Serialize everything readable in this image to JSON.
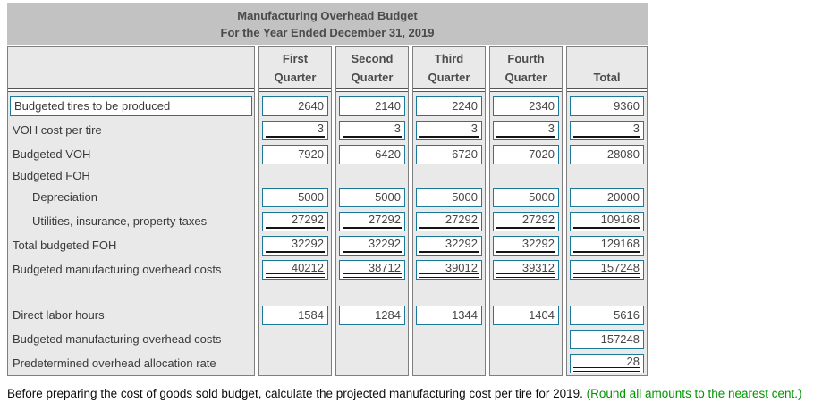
{
  "title": {
    "line1": "Manufacturing Overhead Budget",
    "line2": "For the Year Ended December 31, 2019"
  },
  "columns": [
    {
      "id": "q1",
      "line1": "First",
      "line2": "Quarter"
    },
    {
      "id": "q2",
      "line1": "Second",
      "line2": "Quarter"
    },
    {
      "id": "q3",
      "line1": "Third",
      "line2": "Quarter"
    },
    {
      "id": "q4",
      "line1": "Fourth",
      "line2": "Quarter"
    },
    {
      "id": "total",
      "line1": "",
      "line2": "Total"
    }
  ],
  "rows": [
    {
      "id": "budgeted-tires-to-be-produced",
      "label": "Budgeted tires to be produced",
      "boxed_label": true,
      "underline": "none",
      "cells": {
        "q1": "2640",
        "q2": "2140",
        "q3": "2240",
        "q4": "2340",
        "total": "9360"
      }
    },
    {
      "id": "voh-cost-per-tire",
      "label": "VOH cost per tire",
      "underline": "single",
      "cells": {
        "q1": "3",
        "q2": "3",
        "q3": "3",
        "q4": "3",
        "total": "3"
      }
    },
    {
      "id": "budgeted-voh",
      "label": "Budgeted VOH",
      "underline": "none",
      "cells": {
        "q1": "7920",
        "q2": "6420",
        "q3": "6720",
        "q4": "7020",
        "total": "28080"
      }
    },
    {
      "id": "budgeted-foh",
      "label": "Budgeted FOH"
    },
    {
      "id": "depreciation",
      "label": "Depreciation",
      "indent": true,
      "underline": "none",
      "cells": {
        "q1": "5000",
        "q2": "5000",
        "q3": "5000",
        "q4": "5000",
        "total": "20000"
      }
    },
    {
      "id": "utilities-insurance-property-taxes",
      "label": "Utilities, insurance, property taxes",
      "indent": true,
      "underline": "single",
      "cells": {
        "q1": "27292",
        "q2": "27292",
        "q3": "27292",
        "q4": "27292",
        "total": "109168"
      }
    },
    {
      "id": "total-budgeted-foh",
      "label": "Total budgeted FOH",
      "underline": "single",
      "cells": {
        "q1": "32292",
        "q2": "32292",
        "q3": "32292",
        "q4": "32292",
        "total": "129168"
      }
    },
    {
      "id": "budgeted-manufacturing-overhead-costs",
      "label": "Budgeted manufacturing overhead costs",
      "underline": "double",
      "cells": {
        "q1": "40212",
        "q2": "38712",
        "q3": "39012",
        "q4": "39312",
        "total": "157248"
      }
    },
    {
      "id": "spacer"
    },
    {
      "id": "direct-labor-hours",
      "label": "Direct labor hours",
      "underline": "none",
      "cells": {
        "q1": "1584",
        "q2": "1284",
        "q3": "1344",
        "q4": "1404",
        "total": "5616"
      }
    },
    {
      "id": "budgeted-manufacturing-overhead-costs-total",
      "label": "Budgeted manufacturing overhead costs",
      "underline": "none",
      "cells": {
        "total": "157248"
      }
    },
    {
      "id": "predetermined-overhead-allocation-rate",
      "label": "Predetermined overhead allocation rate",
      "underline": "double",
      "cells": {
        "total": "28"
      }
    }
  ],
  "footer": {
    "text": "Before preparing the cost of goods sold budget, calculate the projected manufacturing cost per tire for 2019. ",
    "note": "(Round all amounts to the nearest cent.)"
  },
  "colors": {
    "input_border": "#1b7a99",
    "underline_ink": "#141414",
    "note_green": "#009600",
    "title_bg": "#c2c2c2",
    "column_bg": "#e9e9e9"
  }
}
